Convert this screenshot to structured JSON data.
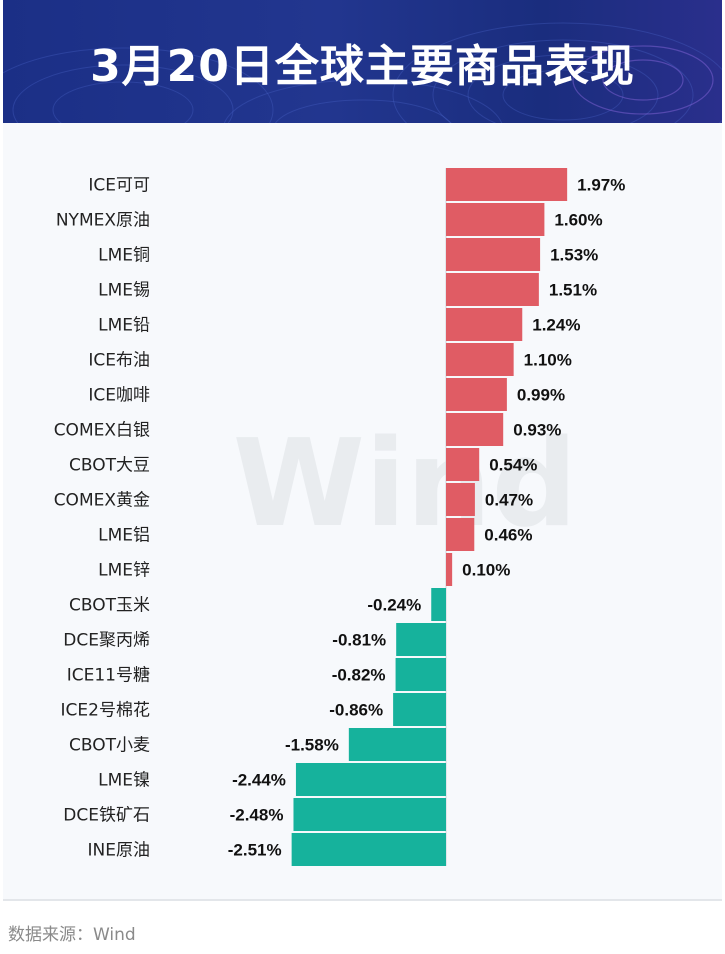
{
  "title": "3月20日全球主要商品表现",
  "source": "数据来源：Wind",
  "watermark": "Wind",
  "colors": {
    "positive": "#e05c64",
    "negative": "#16b29c",
    "header": "#1f318a"
  },
  "chart_data": {
    "type": "bar",
    "orientation": "horizontal",
    "title": "3月20日全球主要商品表现",
    "unit": "%",
    "categories": [
      "ICE可可",
      "NYMEX原油",
      "LME铜",
      "LME锡",
      "LME铅",
      "ICE布油",
      "ICE咖啡",
      "COMEX白银",
      "CBOT大豆",
      "COMEX黄金",
      "LME铝",
      "LME锌",
      "CBOT玉米",
      "DCE聚丙烯",
      "ICE11号糖",
      "ICE2号棉花",
      "CBOT小麦",
      "LME镍",
      "DCE铁矿石",
      "INE原油"
    ],
    "values": [
      1.97,
      1.6,
      1.53,
      1.51,
      1.24,
      1.1,
      0.99,
      0.93,
      0.54,
      0.47,
      0.46,
      0.1,
      -0.24,
      -0.81,
      -0.82,
      -0.86,
      -1.58,
      -2.44,
      -2.48,
      -2.51
    ],
    "labels": [
      "1.97%",
      "1.60%",
      "1.53%",
      "1.51%",
      "1.24%",
      "1.10%",
      "0.99%",
      "0.93%",
      "0.54%",
      "0.47%",
      "0.46%",
      "0.10%",
      "-0.24%",
      "-0.81%",
      "-0.82%",
      "-0.86%",
      "-1.58%",
      "-2.44%",
      "-2.48%",
      "-2.51%"
    ]
  }
}
